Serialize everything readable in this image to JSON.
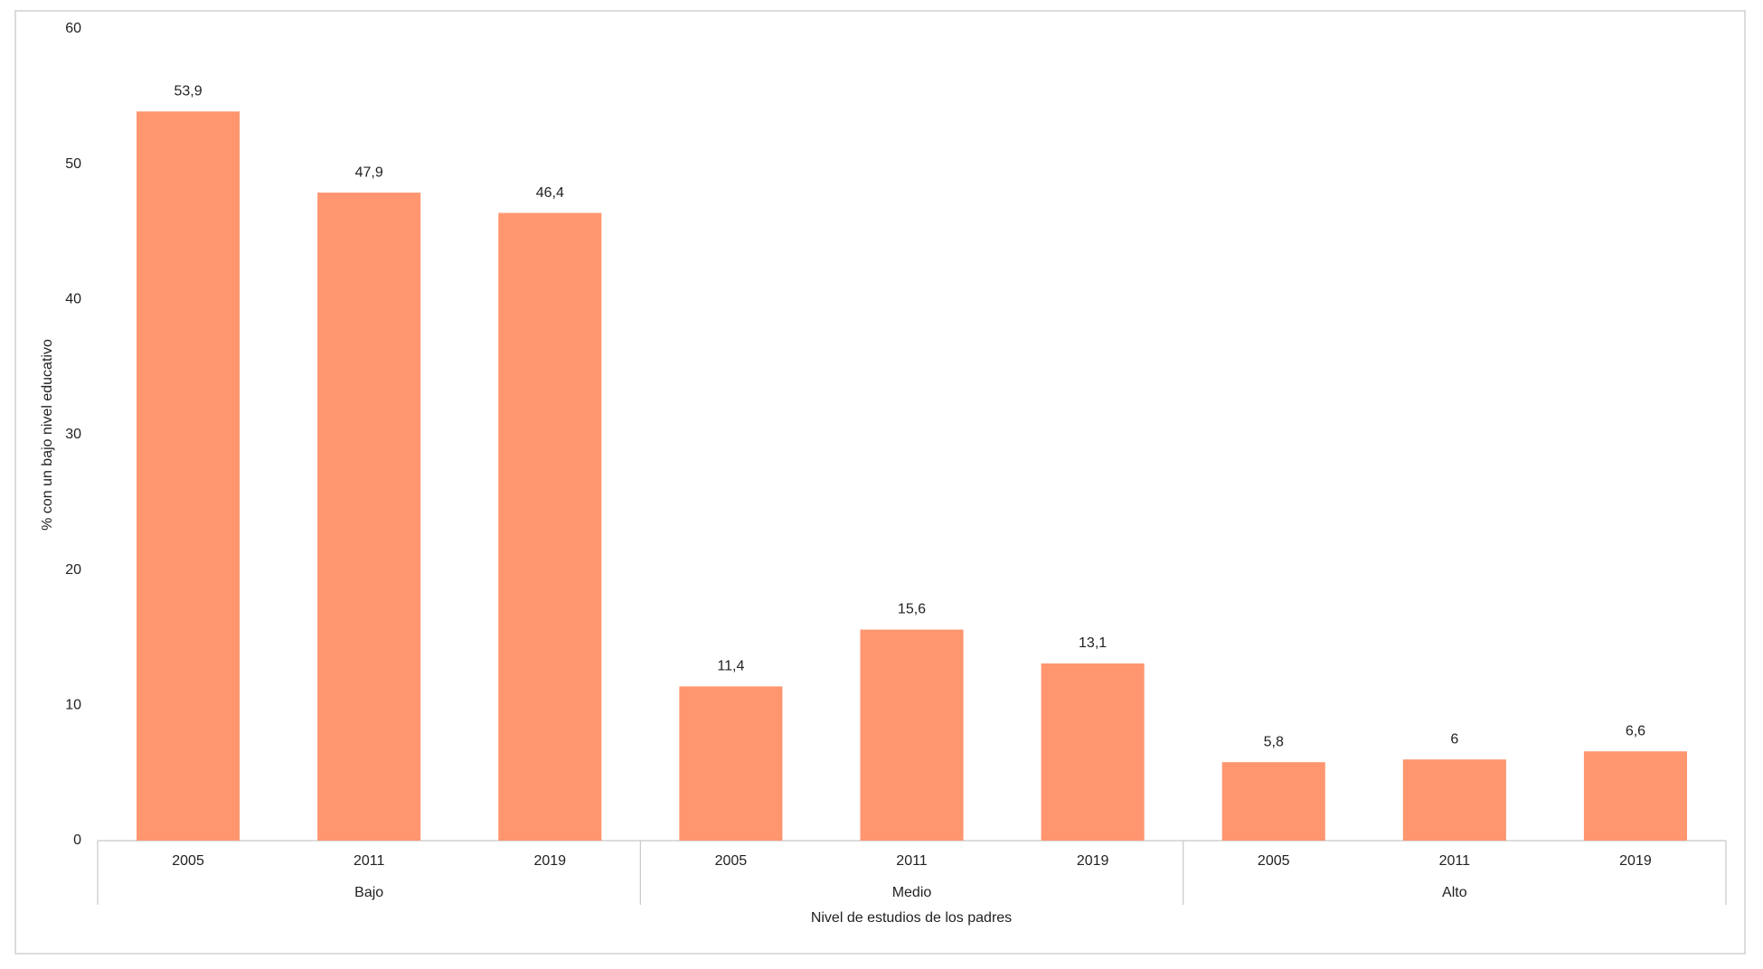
{
  "chart_data": {
    "type": "bar",
    "y_label": "% con un bajo nivel educativo",
    "x_label": "Nivel de estudios de los padres",
    "color": "#ff9670",
    "ylim": [
      0,
      60
    ],
    "yticks": [
      0,
      10,
      20,
      30,
      40,
      50,
      60
    ],
    "grid": false,
    "groups": [
      {
        "name": "Bajo",
        "categories": [
          "2005",
          "2011",
          "2019"
        ],
        "values": [
          53.9,
          47.9,
          46.4
        ],
        "value_labels": [
          "53,9",
          "47,9",
          "46,4"
        ]
      },
      {
        "name": "Medio",
        "categories": [
          "2005",
          "2011",
          "2019"
        ],
        "values": [
          11.4,
          15.6,
          13.1
        ],
        "value_labels": [
          "11,4",
          "15,6",
          "13,1"
        ]
      },
      {
        "name": "Alto",
        "categories": [
          "2005",
          "2011",
          "2019"
        ],
        "values": [
          5.8,
          6,
          6.6
        ],
        "value_labels": [
          "5,8",
          "6",
          "6,6"
        ]
      }
    ]
  }
}
